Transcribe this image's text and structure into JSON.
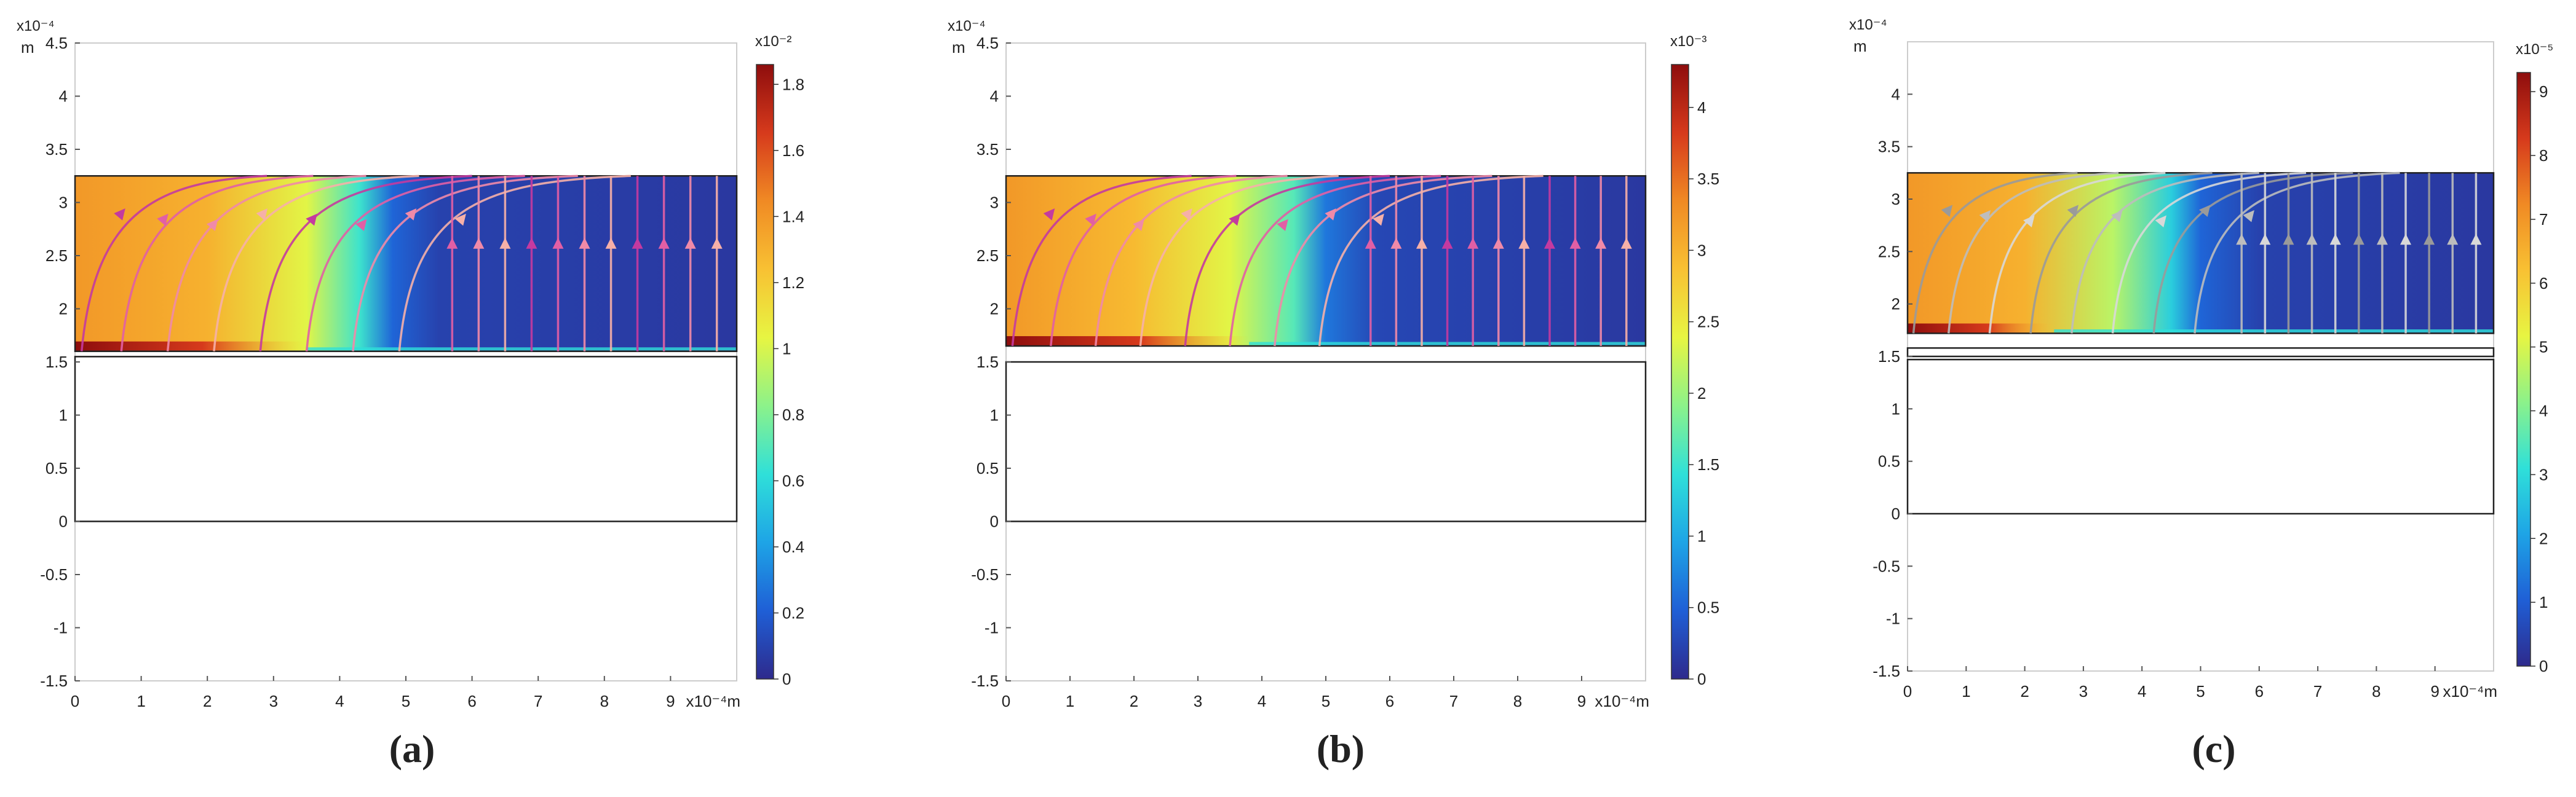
{
  "colors": {
    "background": "#ffffff",
    "axis": "#555555",
    "domain_outline": "#222222",
    "colormap": [
      "#2e2a8c",
      "#1f5fd6",
      "#1ea4e6",
      "#2fe0d9",
      "#8cf28a",
      "#e7f542",
      "#f8c133",
      "#f08a24",
      "#d63a1c",
      "#8e0d0d"
    ],
    "stream_colors_ab": [
      "#c43aa0",
      "#e15fa5",
      "#f08aa8",
      "#f6b0a8"
    ],
    "stream_colors_c": [
      "#9a9a9a",
      "#bdbdbd",
      "#d8d8d8"
    ]
  },
  "chart_data": [
    {
      "type": "heatmap",
      "label": "(a)",
      "axis_exponent_y": "x10⁻⁴",
      "axis_unit_y": "m",
      "axis_exponent_x": "x10⁻⁴m",
      "xlim": [
        0,
        10
      ],
      "ylim": [
        -1.5,
        4.5
      ],
      "x_ticks": [
        0,
        1,
        2,
        3,
        4,
        5,
        6,
        7,
        8,
        9
      ],
      "y_ticks": [
        -1.5,
        -1,
        -0.5,
        0,
        0.5,
        1,
        1.5,
        2,
        2.5,
        3,
        3.5,
        4,
        4.5
      ],
      "colorbar_exponent": "x10⁻²",
      "colorbar_range": [
        0,
        1.86
      ],
      "colorbar_ticks": [
        0,
        0.2,
        0.4,
        0.6,
        0.8,
        1,
        1.2,
        1.4,
        1.6,
        1.8
      ],
      "field_x_range": [
        0,
        10
      ],
      "field_y_range": [
        1.6,
        3.25
      ],
      "field_value_gradient": [
        [
          0,
          0.75
        ],
        [
          2,
          0.7
        ],
        [
          3.5,
          0.55
        ],
        [
          4.3,
          0.35
        ],
        [
          4.8,
          0.12
        ],
        [
          5.5,
          0.05
        ],
        [
          10,
          0.03
        ]
      ],
      "lower_domains": [
        [
          0,
          0,
          10,
          1.55
        ]
      ],
      "hotspot_strip": [
        0,
        3.5
      ],
      "streamlines": "curved from bottom-left to top, vertical on right"
    },
    {
      "type": "heatmap",
      "label": "(b)",
      "axis_exponent_y": "x10⁻⁴",
      "axis_unit_y": "m",
      "axis_exponent_x": "x10⁻⁴m",
      "xlim": [
        0,
        10
      ],
      "ylim": [
        -1.5,
        4.5
      ],
      "x_ticks": [
        0,
        1,
        2,
        3,
        4,
        5,
        6,
        7,
        8,
        9
      ],
      "y_ticks": [
        -1.5,
        -1,
        -0.5,
        0,
        0.5,
        1,
        1.5,
        2,
        2.5,
        3,
        3.5,
        4,
        4.5
      ],
      "colorbar_exponent": "x10⁻³",
      "colorbar_range": [
        0,
        4.3
      ],
      "colorbar_ticks": [
        0,
        0.5,
        1,
        1.5,
        2,
        2.5,
        3,
        3.5,
        4
      ],
      "field_x_range": [
        0,
        10
      ],
      "field_y_range": [
        1.65,
        3.25
      ],
      "field_value_gradient": [
        [
          0,
          0.75
        ],
        [
          2,
          0.68
        ],
        [
          3.5,
          0.55
        ],
        [
          4.5,
          0.38
        ],
        [
          5,
          0.15
        ],
        [
          5.8,
          0.06
        ],
        [
          10,
          0.03
        ]
      ],
      "lower_domains": [
        [
          0,
          0,
          10,
          1.5
        ]
      ],
      "hotspot_strip": [
        0,
        3.8
      ],
      "streamlines": "curved from bottom-left to top, vertical on right"
    },
    {
      "type": "heatmap",
      "label": "(c)",
      "axis_exponent_y": "x10⁻⁴",
      "axis_unit_y": "m",
      "axis_exponent_x": "x10⁻⁴m",
      "xlim": [
        0,
        10
      ],
      "ylim": [
        -1.5,
        4.5
      ],
      "x_ticks": [
        0,
        1,
        2,
        3,
        4,
        5,
        6,
        7,
        8,
        9
      ],
      "y_ticks": [
        -1.5,
        -1,
        -0.5,
        0,
        0.5,
        1,
        1.5,
        2,
        2.5,
        3,
        3.5,
        4
      ],
      "colorbar_exponent": "x10⁻⁵",
      "colorbar_range": [
        0,
        9.3
      ],
      "colorbar_ticks": [
        0,
        1,
        2,
        3,
        4,
        5,
        6,
        7,
        8,
        9
      ],
      "field_x_range": [
        0,
        10
      ],
      "field_y_range": [
        1.72,
        3.25
      ],
      "field_value_gradient": [
        [
          0,
          0.75
        ],
        [
          2,
          0.7
        ],
        [
          3.5,
          0.5
        ],
        [
          4.5,
          0.3
        ],
        [
          5,
          0.12
        ],
        [
          6,
          0.05
        ],
        [
          10,
          0.03
        ]
      ],
      "lower_domains": [
        [
          0,
          0,
          10,
          1.47
        ],
        [
          0,
          1.5,
          10,
          1.58
        ]
      ],
      "hotspot_strip": [
        0,
        2.5
      ],
      "streamlines": "curved from bottom-left to top, vertical on right"
    }
  ]
}
